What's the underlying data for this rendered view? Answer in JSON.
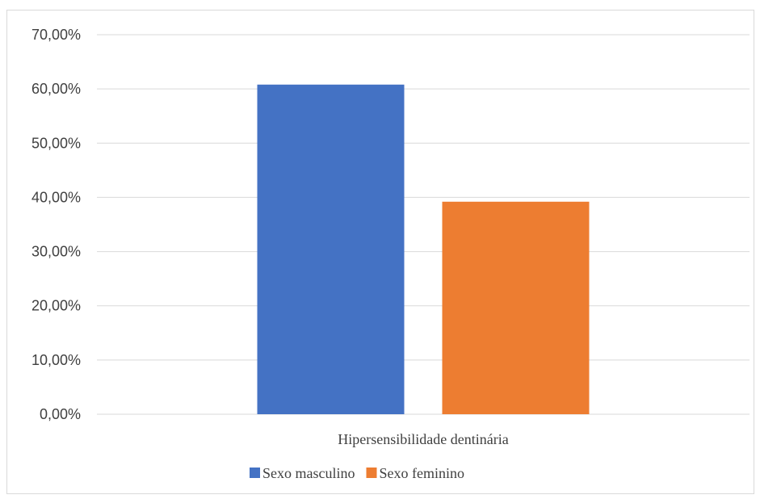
{
  "chart_data": {
    "type": "bar",
    "categories": [
      "Hipersensibilidade dentinária"
    ],
    "series": [
      {
        "name": "Sexo masculino",
        "values": [
          60.8
        ],
        "color": "#4472C4"
      },
      {
        "name": "Sexo feminino",
        "values": [
          39.2
        ],
        "color": "#ED7D31"
      }
    ],
    "ylim": [
      0,
      70
    ],
    "yticks": [
      0,
      10,
      20,
      30,
      40,
      50,
      60,
      70
    ],
    "ytick_labels": [
      "0,00%",
      "10,00%",
      "20,00%",
      "30,00%",
      "40,00%",
      "50,00%",
      "60,00%",
      "70,00%"
    ],
    "grid": true,
    "gridline_color": "#d9d9d9",
    "legend": "bottom",
    "title": "",
    "xlabel": "",
    "ylabel": ""
  }
}
